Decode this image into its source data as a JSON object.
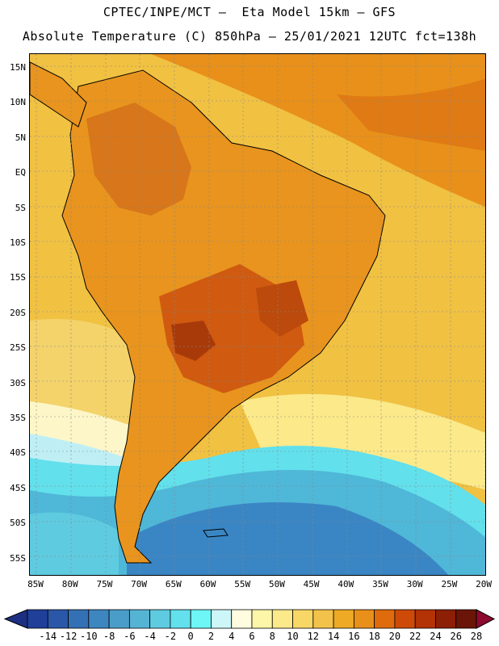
{
  "header": {
    "line1": "CPTEC/INPE/MCT –  Eta Model 15km – GFS",
    "line2": "Absolute Temperature (C) 850hPa – 25/01/2021 12UTC fct=138h"
  },
  "lat_labels": [
    "15N",
    "10N",
    "5N",
    "EQ",
    "5S",
    "10S",
    "15S",
    "20S",
    "25S",
    "30S",
    "35S",
    "40S",
    "45S",
    "50S",
    "55S"
  ],
  "lon_labels": [
    "85W",
    "80W",
    "75W",
    "70W",
    "65W",
    "60W",
    "55W",
    "50W",
    "45W",
    "40W",
    "35W",
    "30W",
    "25W",
    "20W"
  ],
  "colorbar": {
    "labels": [
      "-14",
      "-12",
      "-10",
      "-8",
      "-6",
      "-4",
      "-2",
      "0",
      "2",
      "4",
      "6",
      "8",
      "10",
      "12",
      "14",
      "16",
      "18",
      "20",
      "22",
      "24",
      "26",
      "28"
    ],
    "colors": [
      "#1f3f99",
      "#2a57a8",
      "#3470b4",
      "#3e86c0",
      "#4a9dc9",
      "#55b4d4",
      "#5fcbe0",
      "#62e0ec",
      "#6ef5f5",
      "#cdf6f8",
      "#fffce0",
      "#fdf6a8",
      "#fbe98a",
      "#f8d766",
      "#f3c24a",
      "#eeaa25",
      "#e8901a",
      "#df6b0c",
      "#ce4a08",
      "#b33206",
      "#8c1f05",
      "#6a1508"
    ],
    "low_arrow_color": "#1c2f82",
    "high_arrow_color": "#8e0a2e"
  },
  "map": {
    "ocean_base": "#f1c142",
    "land_warm": "#e8941e",
    "hot_core": "#bf4b0c",
    "cold_core": "#3a86c4"
  }
}
